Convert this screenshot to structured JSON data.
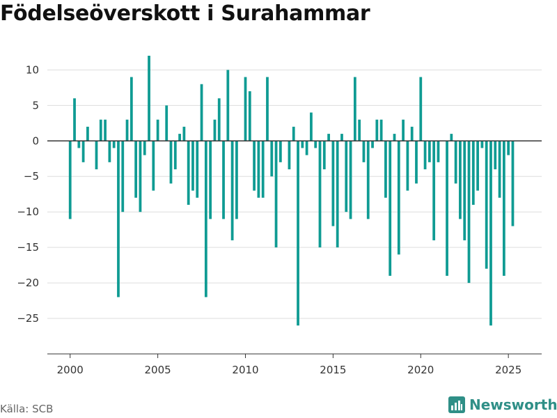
{
  "title": "Födelseöverskott i Surahammar",
  "source": "Källa: SCB",
  "brand": "Newsworthy",
  "colors": {
    "bar": "#0f9b93",
    "grid": "#dddddd",
    "zero": "#333333",
    "brand": "#2f8f87"
  },
  "chart_data": {
    "type": "bar",
    "title": "Födelseöverskott i Surahammar",
    "xlabel": "",
    "ylabel": "",
    "ylim": [
      -30,
      12
    ],
    "xlim": [
      1998.7,
      2026.9
    ],
    "x_ticks": [
      2000,
      2005,
      2010,
      2015,
      2020,
      2025
    ],
    "y_ticks": [
      10,
      5,
      0,
      -5,
      -10,
      -15,
      -20,
      -25
    ],
    "y_tick_labels": [
      "10",
      "5",
      "0",
      "−5",
      "−10",
      "−15",
      "−20",
      "−25"
    ],
    "grid": true,
    "start_year": 2000,
    "periods_per_year": 4,
    "values": [
      -11,
      6,
      -1,
      -3,
      2,
      0,
      -4,
      3,
      3,
      -3,
      -1,
      -22,
      -10,
      3,
      9,
      -8,
      -10,
      -2,
      12,
      -7,
      3,
      0,
      5,
      -6,
      -4,
      1,
      2,
      -9,
      -7,
      -8,
      8,
      -22,
      -11,
      3,
      6,
      -11,
      10,
      -14,
      -11,
      0,
      9,
      7,
      -7,
      -8,
      -8,
      9,
      -5,
      -15,
      -3,
      0,
      -4,
      2,
      -26,
      -1,
      -2,
      4,
      -1,
      -15,
      -4,
      1,
      -12,
      -15,
      1,
      -10,
      -11,
      9,
      3,
      -3,
      -11,
      -1,
      3,
      3,
      -8,
      -19,
      1,
      -16,
      3,
      -7,
      2,
      -6,
      9,
      -4,
      -3,
      -14,
      -3,
      0,
      -19,
      1,
      -6,
      -11,
      -14,
      -20,
      -9,
      -7,
      -1,
      -18,
      -26,
      -4,
      -8,
      -19,
      -2,
      -12
    ]
  }
}
